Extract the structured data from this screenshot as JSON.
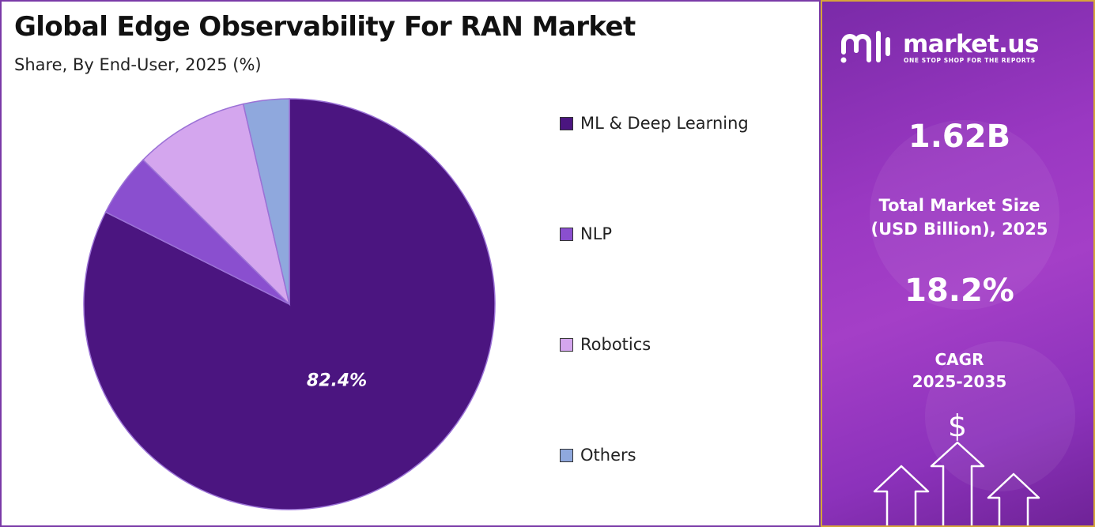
{
  "header": {
    "title": "Global Edge Observability For RAN Market",
    "subtitle": "Share, By End-User, 2025 (%)"
  },
  "chart_data": {
    "type": "pie",
    "title": "Global Edge Observability For RAN Market",
    "subtitle": "Share, By End-User, 2025 (%)",
    "slices": [
      {
        "name": "ML & Deep Learning",
        "value": 82.4,
        "color": "#4b1580",
        "label": "82.4%"
      },
      {
        "name": "NLP",
        "value": 5.0,
        "color": "#8a4fcf",
        "label": ""
      },
      {
        "name": "Robotics",
        "value": 9.0,
        "color": "#d4a6ee",
        "label": ""
      },
      {
        "name": "Others",
        "value": 3.6,
        "color": "#8fa8dd",
        "label": ""
      }
    ],
    "start_angle_deg": 0,
    "direction": "clockwise",
    "legend_position": "right"
  },
  "sidebar": {
    "brand": "market.us",
    "tagline": "ONE STOP SHOP FOR THE REPORTS",
    "market_size_value": "1.62B",
    "market_size_label_line1": "Total Market Size",
    "market_size_label_line2": "(USD Billion), 2025",
    "cagr_value": "18.2%",
    "cagr_label_line1": "CAGR",
    "cagr_label_line2": "2025-2035",
    "currency_symbol": "$"
  }
}
